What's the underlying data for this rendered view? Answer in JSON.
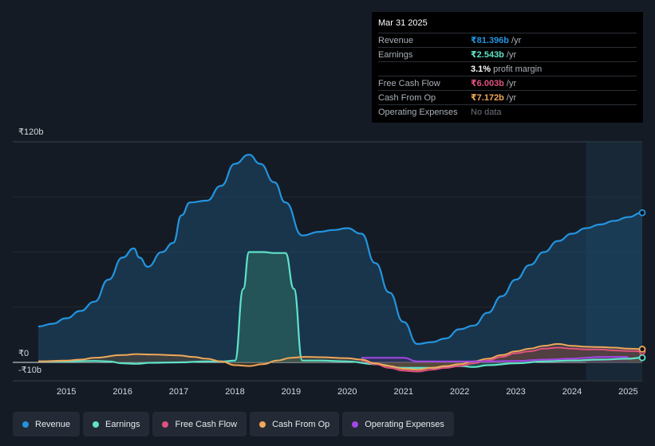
{
  "chart_data": {
    "type": "area",
    "currency_symbol": "₹",
    "y_axis": {
      "max_label": "₹120b",
      "zero_label": "₹0",
      "min_label": "-₹10b",
      "ylim": [
        -10,
        120
      ]
    },
    "x_ticks": [
      "2015",
      "2016",
      "2017",
      "2018",
      "2019",
      "2020",
      "2021",
      "2022",
      "2023",
      "2024",
      "2025"
    ],
    "xlim": [
      2014.5,
      2025.25
    ],
    "forecast_start": 2024.25,
    "series": [
      {
        "name": "Revenue",
        "color": "#2394df",
        "points": [
          [
            2014.5,
            19.5
          ],
          [
            2014.75,
            21
          ],
          [
            2015.0,
            24
          ],
          [
            2015.25,
            28
          ],
          [
            2015.5,
            33
          ],
          [
            2015.75,
            45
          ],
          [
            2016.0,
            57
          ],
          [
            2016.2,
            62
          ],
          [
            2016.3,
            57
          ],
          [
            2016.45,
            52
          ],
          [
            2016.7,
            60
          ],
          [
            2016.9,
            65
          ],
          [
            2017.05,
            80
          ],
          [
            2017.2,
            87
          ],
          [
            2017.5,
            88
          ],
          [
            2017.75,
            96
          ],
          [
            2018.0,
            108
          ],
          [
            2018.25,
            113
          ],
          [
            2018.45,
            108
          ],
          [
            2018.7,
            98
          ],
          [
            2018.9,
            87
          ],
          [
            2019.2,
            69
          ],
          [
            2019.5,
            71
          ],
          [
            2019.75,
            72
          ],
          [
            2020.0,
            73
          ],
          [
            2020.25,
            70
          ],
          [
            2020.5,
            54
          ],
          [
            2020.75,
            38
          ],
          [
            2021.0,
            22
          ],
          [
            2021.25,
            10
          ],
          [
            2021.5,
            11
          ],
          [
            2021.75,
            13
          ],
          [
            2022.0,
            18
          ],
          [
            2022.25,
            20
          ],
          [
            2022.5,
            27
          ],
          [
            2022.75,
            36
          ],
          [
            2023.0,
            45
          ],
          [
            2023.25,
            53
          ],
          [
            2023.5,
            60
          ],
          [
            2023.75,
            66
          ],
          [
            2024.0,
            70
          ],
          [
            2024.25,
            73
          ],
          [
            2024.5,
            75
          ],
          [
            2024.75,
            77
          ],
          [
            2025.0,
            79
          ],
          [
            2025.25,
            81.4
          ]
        ]
      },
      {
        "name": "Earnings",
        "color": "#5fe2c8",
        "points": [
          [
            2014.5,
            0.5
          ],
          [
            2015.0,
            0.5
          ],
          [
            2015.5,
            0.8
          ],
          [
            2015.75,
            0.5
          ],
          [
            2016.0,
            -0.5
          ],
          [
            2016.25,
            -0.8
          ],
          [
            2016.5,
            -0.2
          ],
          [
            2017.0,
            0
          ],
          [
            2017.5,
            0.5
          ],
          [
            2017.8,
            0.5
          ],
          [
            2018.0,
            1
          ],
          [
            2018.15,
            40
          ],
          [
            2018.25,
            60
          ],
          [
            2018.5,
            60
          ],
          [
            2018.7,
            59.5
          ],
          [
            2018.9,
            59.5
          ],
          [
            2019.05,
            40
          ],
          [
            2019.2,
            1
          ],
          [
            2019.5,
            1
          ],
          [
            2020.0,
            0.5
          ],
          [
            2020.5,
            -1
          ],
          [
            2021.0,
            -3
          ],
          [
            2021.5,
            -3
          ],
          [
            2022.0,
            -2
          ],
          [
            2022.25,
            -2.5
          ],
          [
            2022.5,
            -1.5
          ],
          [
            2023.0,
            -0.5
          ],
          [
            2023.5,
            0.5
          ],
          [
            2024.0,
            1
          ],
          [
            2024.5,
            1.5
          ],
          [
            2025.0,
            2
          ],
          [
            2025.25,
            2.543
          ]
        ]
      },
      {
        "name": "Free Cash Flow",
        "color": "#e0517f",
        "points": [
          [
            2020.25,
            1
          ],
          [
            2020.5,
            -1
          ],
          [
            2020.75,
            -3
          ],
          [
            2021.0,
            -4.5
          ],
          [
            2021.25,
            -5
          ],
          [
            2021.5,
            -4
          ],
          [
            2021.75,
            -3
          ],
          [
            2022.0,
            -2
          ],
          [
            2022.25,
            -0.5
          ],
          [
            2022.5,
            1
          ],
          [
            2022.75,
            3
          ],
          [
            2023.0,
            5
          ],
          [
            2023.25,
            6
          ],
          [
            2023.5,
            7.5
          ],
          [
            2023.75,
            8
          ],
          [
            2024.0,
            7.5
          ],
          [
            2024.25,
            7
          ],
          [
            2024.5,
            7
          ],
          [
            2024.75,
            6.5
          ],
          [
            2025.0,
            6.2
          ],
          [
            2025.25,
            6.003
          ]
        ]
      },
      {
        "name": "Cash From Op",
        "color": "#f0a859",
        "points": [
          [
            2014.5,
            0.5
          ],
          [
            2015.0,
            1
          ],
          [
            2015.25,
            1.5
          ],
          [
            2015.5,
            2.5
          ],
          [
            2016.0,
            4
          ],
          [
            2016.25,
            4.5
          ],
          [
            2016.5,
            4.3
          ],
          [
            2017.0,
            3.8
          ],
          [
            2017.25,
            3
          ],
          [
            2017.5,
            2
          ],
          [
            2017.75,
            0.5
          ],
          [
            2018.0,
            -1.5
          ],
          [
            2018.25,
            -2
          ],
          [
            2018.5,
            -1
          ],
          [
            2018.75,
            1
          ],
          [
            2019.0,
            2.5
          ],
          [
            2019.25,
            3
          ],
          [
            2019.5,
            2.8
          ],
          [
            2020.0,
            2.3
          ],
          [
            2020.25,
            1.5
          ],
          [
            2020.5,
            -0.5
          ],
          [
            2020.75,
            -2
          ],
          [
            2021.0,
            -3.5
          ],
          [
            2021.25,
            -4
          ],
          [
            2021.5,
            -3
          ],
          [
            2021.75,
            -2
          ],
          [
            2022.0,
            -1
          ],
          [
            2022.25,
            0.5
          ],
          [
            2022.5,
            2
          ],
          [
            2022.75,
            4
          ],
          [
            2023.0,
            6
          ],
          [
            2023.25,
            7.5
          ],
          [
            2023.5,
            9
          ],
          [
            2023.75,
            10
          ],
          [
            2024.0,
            9
          ],
          [
            2024.25,
            8.5
          ],
          [
            2024.5,
            8.3
          ],
          [
            2024.75,
            8
          ],
          [
            2025.0,
            7.5
          ],
          [
            2025.25,
            7.172
          ]
        ]
      },
      {
        "name": "Operating Expenses",
        "color": "#a347e6",
        "points": [
          [
            2020.25,
            2.5
          ],
          [
            2020.5,
            2.5
          ],
          [
            2021.0,
            2.5
          ],
          [
            2021.25,
            0.5
          ],
          [
            2021.5,
            0.5
          ],
          [
            2022.0,
            0.5
          ],
          [
            2022.5,
            0.5
          ],
          [
            2023.0,
            0.8
          ],
          [
            2023.5,
            1.5
          ],
          [
            2024.0,
            2
          ],
          [
            2024.25,
            2.5
          ],
          [
            2024.5,
            3
          ],
          [
            2024.75,
            3
          ],
          [
            2025.0,
            3
          ]
        ]
      }
    ]
  },
  "tooltip": {
    "date": "Mar 31 2025",
    "rows": [
      {
        "label": "Revenue",
        "value": "₹81.396b",
        "unit": "/yr",
        "color": "#2394df"
      },
      {
        "label": "Earnings",
        "value": "₹2.543b",
        "unit": "/yr",
        "color": "#5fe2c8"
      },
      {
        "label": "",
        "value": "3.1%",
        "unit": "profit margin",
        "color": "#ffffff"
      },
      {
        "label": "Free Cash Flow",
        "value": "₹6.003b",
        "unit": "/yr",
        "color": "#e0517f"
      },
      {
        "label": "Cash From Op",
        "value": "₹7.172b",
        "unit": "/yr",
        "color": "#f0a859"
      },
      {
        "label": "Operating Expenses",
        "value": "No data",
        "unit": "",
        "color": ""
      }
    ]
  },
  "legend": [
    {
      "label": "Revenue",
      "color": "#2394df"
    },
    {
      "label": "Earnings",
      "color": "#5fe2c8"
    },
    {
      "label": "Free Cash Flow",
      "color": "#e0517f"
    },
    {
      "label": "Cash From Op",
      "color": "#f0a859"
    },
    {
      "label": "Operating Expenses",
      "color": "#a347e6"
    }
  ]
}
